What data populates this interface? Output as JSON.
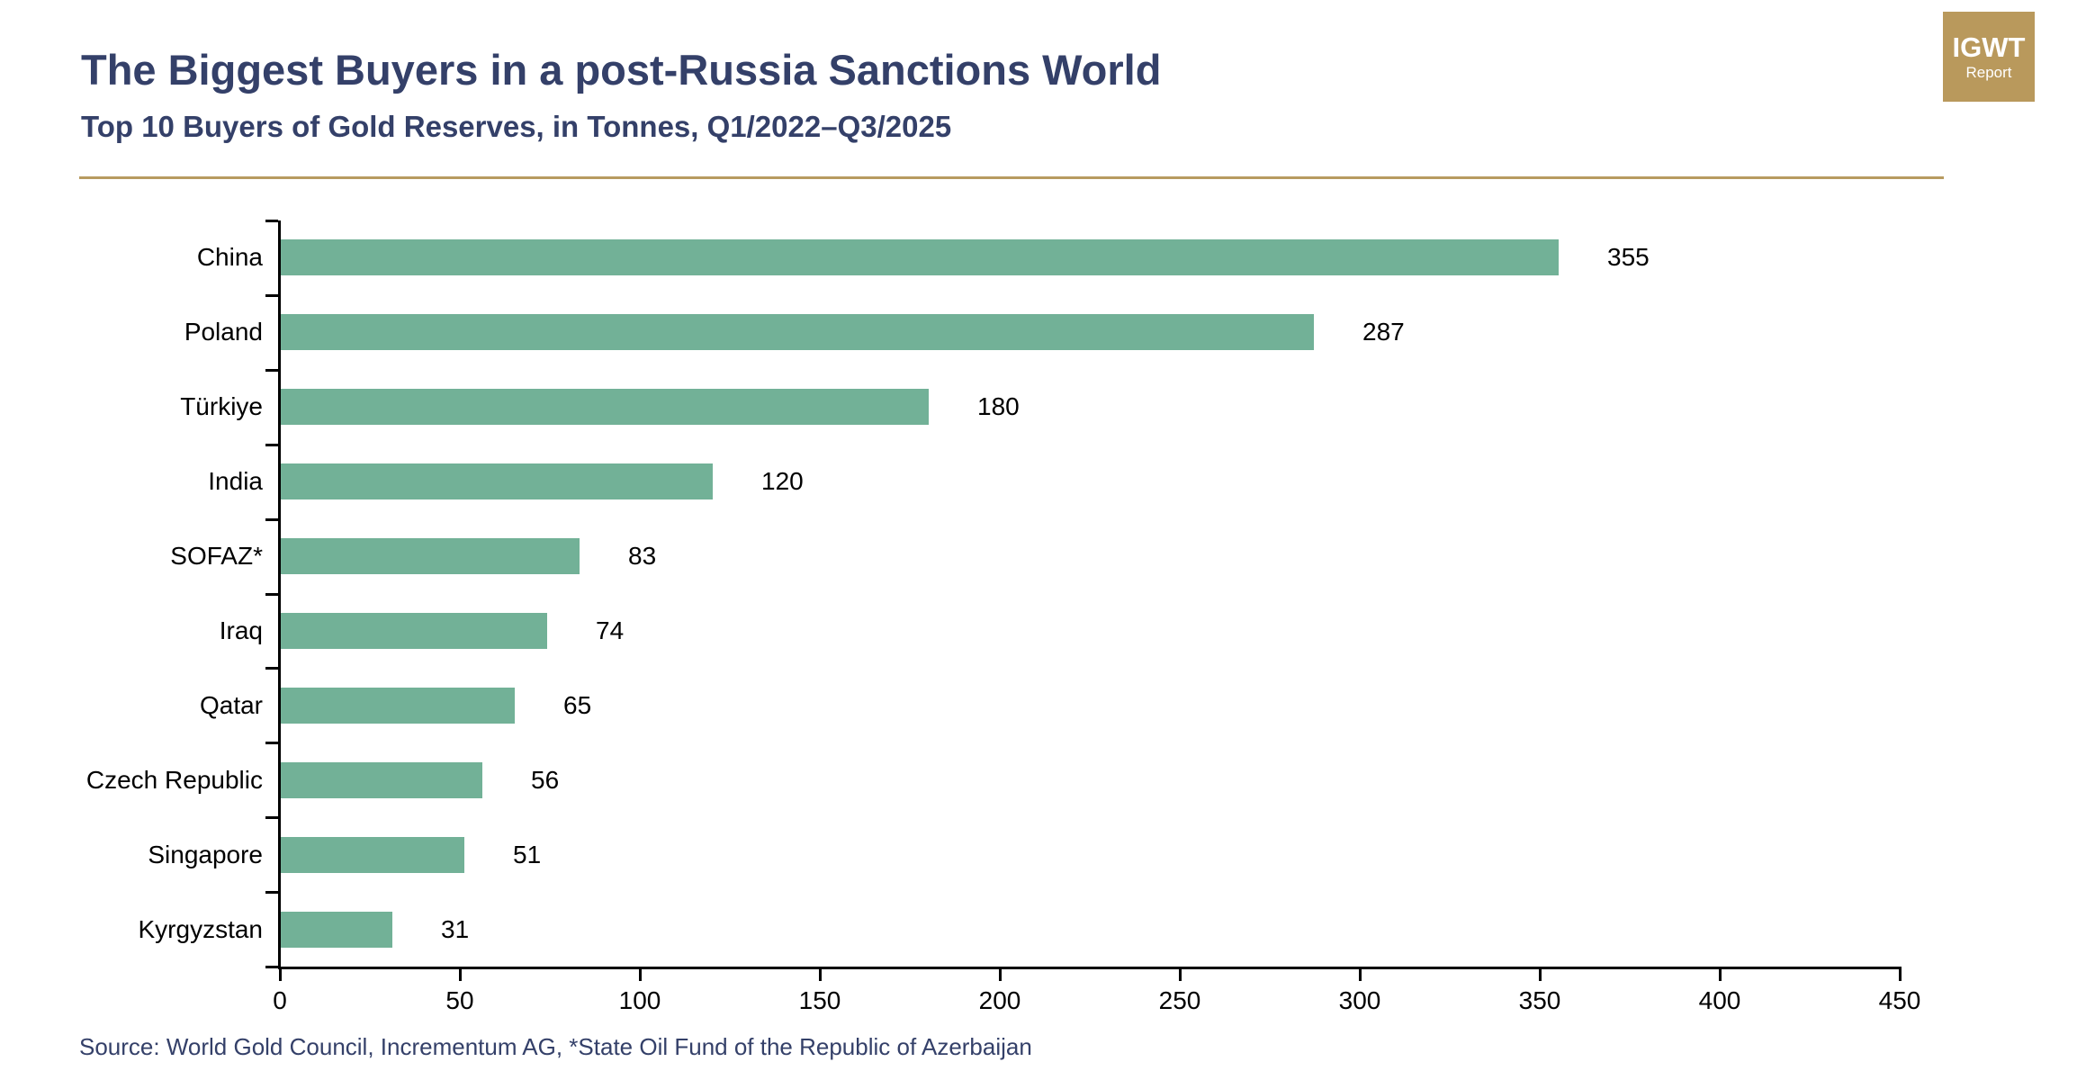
{
  "header": {
    "title": "The Biggest Buyers in a post-Russia Sanctions World",
    "subtitle": "Top 10 Buyers of Gold Reserves, in Tonnes, Q1/2022–Q3/2025",
    "logo": {
      "line1": "IGWT",
      "line2": "Report",
      "background": "#B9995C",
      "text_color": "#FFFFFF"
    },
    "divider_color": "#B89B60",
    "title_color": "#344069"
  },
  "chart_data": {
    "type": "bar",
    "orientation": "horizontal",
    "title": "The Biggest Buyers in a post-Russia Sanctions World",
    "subtitle": "Top 10 Buyers of Gold Reserves, in Tonnes, Q1/2022–Q3/2025",
    "categories": [
      "China",
      "Poland",
      "Türkiye",
      "India",
      "SOFAZ*",
      "Iraq",
      "Qatar",
      "Czech Republic",
      "Singapore",
      "Kyrgyzstan"
    ],
    "values": [
      355,
      287,
      180,
      120,
      83,
      74,
      65,
      56,
      51,
      31
    ],
    "value_labels": [
      "355",
      "287",
      "180",
      "120",
      "83",
      "74",
      "65",
      "56",
      "51",
      "31"
    ],
    "xlabel": "",
    "ylabel": "",
    "xlim": [
      0,
      450
    ],
    "xticks": [
      0,
      50,
      100,
      150,
      200,
      250,
      300,
      350,
      400,
      450
    ],
    "xtick_labels": [
      "0",
      "50",
      "100",
      "150",
      "200",
      "250",
      "300",
      "350",
      "400",
      "450"
    ],
    "unit": "tonnes",
    "bar_color": "#72B197",
    "axis_color": "#000000",
    "label_color": "#000000",
    "grid": false,
    "legend_position": "none",
    "value_labels_shown": true
  },
  "footer": {
    "source": "Source: World Gold Council, Incrementum AG, *State Oil Fund of the Republic of Azerbaijan"
  }
}
